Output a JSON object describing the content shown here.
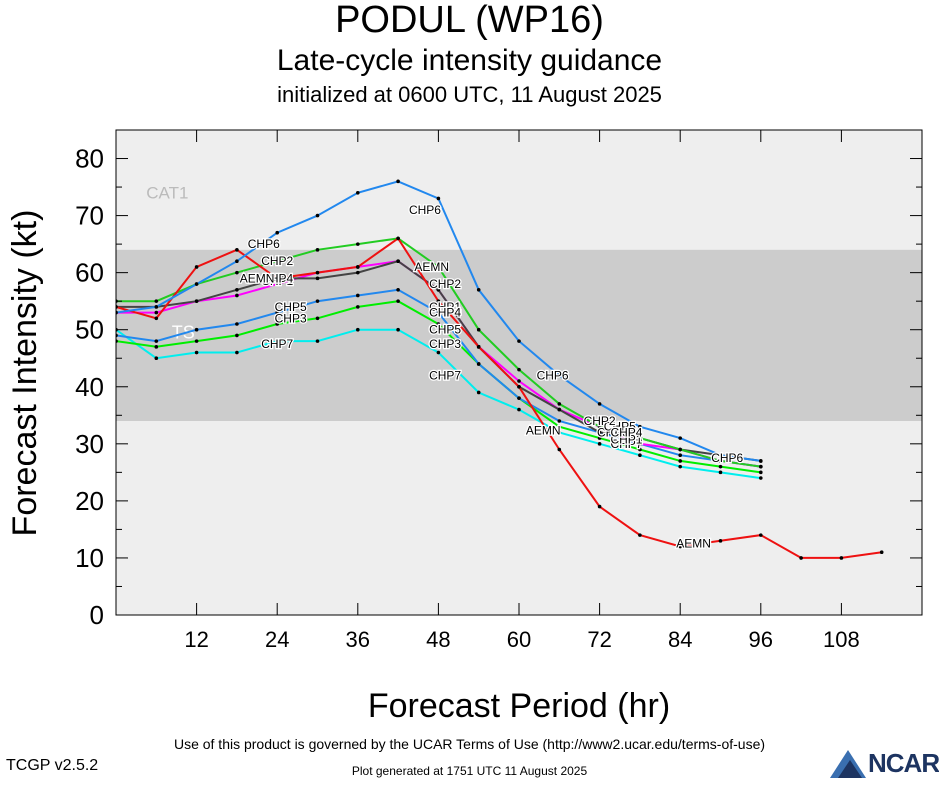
{
  "header": {
    "title": "PODUL (WP16)",
    "subtitle": "Late-cycle intensity guidance",
    "init": "initialized at 0600 UTC, 11 August 2025"
  },
  "footer": {
    "terms": "Use of this product is governed by the UCAR Terms of Use (http://www2.ucar.edu/terms-of-use)",
    "generated": "Plot generated at 1751 UTC   11 August 2025",
    "version": "TCGP v2.5.2",
    "logo": "NCAR"
  },
  "colors": {
    "AEMN": "#ee1111",
    "CHP1": "#ff00ff",
    "CHP2": "#22cc22",
    "CHP3": "#00ee00",
    "CHP4": "#444444",
    "CHP5": "#2288ee",
    "CHP6": "#2288ee",
    "CHP7": "#00eeee",
    "band_ts": "#cccccc",
    "band_cat": "#eeeeee"
  },
  "chart_data": {
    "type": "line",
    "xlabel": "Forecast Period (hr)",
    "ylabel": "Forecast Intensity (kt)",
    "xlim": [
      0,
      120
    ],
    "ylim": [
      0,
      85
    ],
    "xticks": [
      12,
      24,
      36,
      48,
      60,
      72,
      84,
      96,
      108
    ],
    "yticks": [
      0,
      10,
      20,
      30,
      40,
      50,
      60,
      70,
      80
    ],
    "bands": [
      {
        "label": "TS",
        "from": 34,
        "to": 64
      },
      {
        "label": "CAT1",
        "from": 64,
        "to": 85
      }
    ],
    "series": [
      {
        "name": "AEMN",
        "x": [
          0,
          6,
          12,
          18,
          24,
          30,
          36,
          42,
          48,
          54,
          60,
          66,
          72,
          78,
          84,
          90,
          96,
          102,
          108,
          114
        ],
        "y": [
          54,
          52,
          61,
          64,
          59,
          60,
          61,
          66,
          55,
          47,
          40,
          29,
          19,
          14,
          12,
          13,
          14,
          10,
          10,
          11
        ],
        "label_at": [
          [
            21,
            59
          ],
          [
            47,
            61
          ],
          [
            63.6,
            32.3
          ],
          [
            86,
            12.5
          ]
        ]
      },
      {
        "name": "CHP1",
        "x": [
          0,
          6,
          12,
          18,
          24,
          30,
          36,
          42,
          48,
          54,
          60,
          66,
          72,
          78,
          84,
          90,
          96
        ],
        "y": [
          53,
          53,
          55,
          56,
          58,
          60,
          61,
          62,
          57,
          47,
          41,
          36,
          33,
          30,
          29,
          27,
          26
        ],
        "label_at": [
          [
            24,
            58.5
          ],
          [
            49,
            54
          ],
          [
            76,
            30.8
          ]
        ]
      },
      {
        "name": "CHP2",
        "x": [
          0,
          6,
          12,
          18,
          24,
          30,
          36,
          42,
          48,
          54,
          60,
          66,
          72,
          78,
          84,
          90,
          96
        ],
        "y": [
          55,
          55,
          58,
          60,
          62,
          64,
          65,
          66,
          61,
          50,
          43,
          37,
          33,
          31,
          29,
          27,
          26
        ],
        "label_at": [
          [
            24,
            62
          ],
          [
            49,
            58
          ],
          [
            72,
            34
          ]
        ]
      },
      {
        "name": "CHP3",
        "x": [
          0,
          6,
          12,
          18,
          24,
          30,
          36,
          42,
          48,
          54,
          60,
          66,
          72,
          78,
          84,
          90,
          96
        ],
        "y": [
          48,
          47,
          48,
          49,
          51,
          52,
          54,
          55,
          51,
          44,
          38,
          33,
          31,
          29,
          27,
          26,
          25
        ],
        "label_at": [
          [
            26,
            52
          ],
          [
            49,
            47.5
          ],
          [
            74,
            32
          ]
        ]
      },
      {
        "name": "CHP4",
        "x": [
          0,
          6,
          12,
          18,
          24,
          30,
          36,
          42,
          48,
          54,
          60,
          66,
          72,
          78,
          84,
          90,
          96
        ],
        "y": [
          54,
          54,
          55,
          57,
          59,
          59,
          60,
          62,
          57,
          47,
          40,
          36,
          32,
          31,
          29,
          28,
          27
        ],
        "label_at": [
          [
            24,
            59
          ],
          [
            49,
            53
          ],
          [
            76,
            32
          ]
        ]
      },
      {
        "name": "CHP5",
        "x": [
          0,
          6,
          12,
          18,
          24,
          30,
          36,
          42,
          48,
          54,
          60,
          66,
          72,
          78,
          84,
          90,
          96
        ],
        "y": [
          49,
          48,
          50,
          51,
          53,
          55,
          56,
          57,
          53,
          44,
          38,
          34,
          32,
          30,
          28,
          27,
          26
        ],
        "label_at": [
          [
            26,
            54
          ],
          [
            49,
            50
          ],
          [
            75,
            33
          ]
        ]
      },
      {
        "name": "CHP6",
        "x": [
          0,
          6,
          12,
          18,
          24,
          30,
          36,
          42,
          48,
          54,
          60,
          66,
          72,
          78,
          84,
          90,
          96
        ],
        "y": [
          53,
          54,
          58,
          62,
          67,
          70,
          74,
          76,
          73,
          57,
          48,
          42,
          37,
          33,
          31,
          28,
          27
        ],
        "label_at": [
          [
            22,
            65
          ],
          [
            46,
            71
          ],
          [
            65,
            42
          ],
          [
            91,
            27.5
          ]
        ]
      },
      {
        "name": "CHP7",
        "x": [
          0,
          6,
          12,
          18,
          24,
          30,
          36,
          42,
          48,
          54,
          60,
          66,
          72,
          78,
          84,
          90,
          96
        ],
        "y": [
          50,
          45,
          46,
          46,
          48,
          48,
          50,
          50,
          46,
          39,
          36,
          32,
          30,
          28,
          26,
          25,
          24
        ],
        "label_at": [
          [
            24,
            47.5
          ],
          [
            49,
            42
          ],
          [
            76,
            30
          ]
        ]
      }
    ]
  }
}
